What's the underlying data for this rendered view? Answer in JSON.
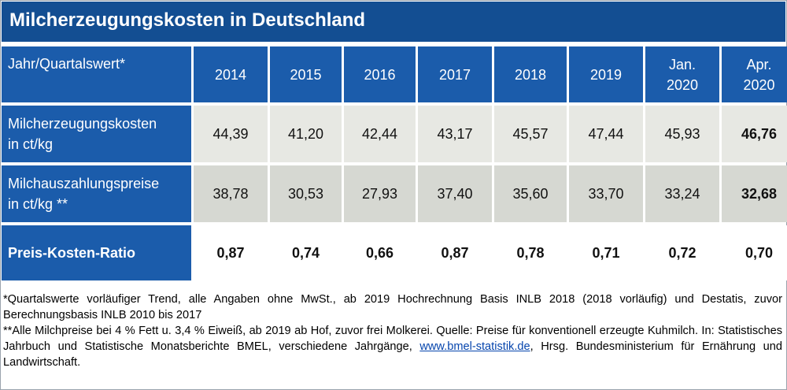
{
  "title": "Milcherzeugungskosten in Deutschland",
  "table": {
    "header_label": "Jahr/Quartalswert*",
    "columns": [
      {
        "line1": "2014",
        "line2": ""
      },
      {
        "line1": "2015",
        "line2": ""
      },
      {
        "line1": "2016",
        "line2": ""
      },
      {
        "line1": "2017",
        "line2": ""
      },
      {
        "line1": "2018",
        "line2": ""
      },
      {
        "line1": "2019",
        "line2": ""
      },
      {
        "line1": "Jan.",
        "line2": "2020"
      },
      {
        "line1": "Apr.",
        "line2": "2020"
      }
    ],
    "rows": [
      {
        "label_line1": "Milcherzeugungskosten",
        "label_line2": "in ct/kg",
        "values": [
          "44,39",
          "41,20",
          "42,44",
          "43,17",
          "45,57",
          "47,44",
          "45,93",
          "46,76"
        ]
      },
      {
        "label_line1": "Milchauszahlungspreise",
        "label_line2": "in ct/kg **",
        "values": [
          "38,78",
          "30,53",
          "27,93",
          "37,40",
          "35,60",
          "33,70",
          "33,24",
          "32,68"
        ]
      },
      {
        "label_line1": "Preis-Kosten-Ratio",
        "label_line2": "",
        "values": [
          "0,87",
          "0,74",
          "0,66",
          "0,87",
          "0,78",
          "0,71",
          "0,72",
          "0,70"
        ]
      }
    ]
  },
  "notes": {
    "note1": "*Quartalswerte vorläufiger Trend, alle Angaben ohne MwSt., ab 2019 Hochrechnung Basis INLB 2018 (2018 vorläufig) und Destatis, zuvor Berechnungsbasis INLB 2010 bis 2017",
    "note2_before_link": "**Alle Milchpreise bei 4 % Fett u. 3,4 % Eiweiß, ab 2019 ab Hof, zuvor frei Molkerei. Quelle: Preise für konventionell erzeugte Kuhmilch. In: Statistisches Jahrbuch und Statistische Monatsberichte BMEL, verschiedene Jahrgänge, ",
    "note2_link": "www.bmel-statistik.de",
    "note2_after_link": ", Hrsg. Bundesministerium für Ernährung und Landwirtschaft."
  },
  "colors": {
    "title_bar": "#134e92",
    "header_cells": "#1b5cab",
    "row1_cells": "#e7e8e3",
    "row2_cells": "#d6d8d2"
  }
}
